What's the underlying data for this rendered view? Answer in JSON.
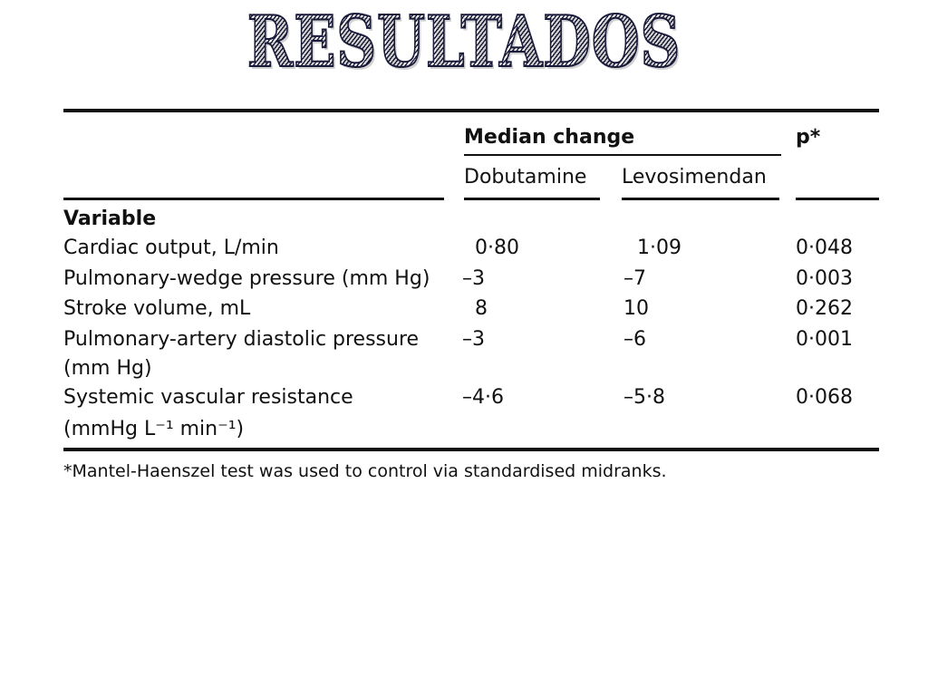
{
  "title": "RESULTADOS",
  "table": {
    "group_header": "Median change",
    "p_header": "p*",
    "col_dobutamine": "Dobutamine",
    "col_levosimendan": "Levosimendan",
    "variable_header": "Variable",
    "rows": [
      {
        "label": "Cardiac output, L/min",
        "dobutamine": "0·80",
        "levosimendan": "1·09",
        "p": "0·048"
      },
      {
        "label": "Pulmonary-wedge pressure (mm Hg)",
        "dobutamine": "–3",
        "levosimendan": "–7",
        "p": "0·003"
      },
      {
        "label": "Stroke volume, mL",
        "dobutamine": "8",
        "levosimendan": "10",
        "p": "0·262"
      },
      {
        "label": "Pulmonary-artery diastolic pressure",
        "label_line2": "(mm Hg)",
        "dobutamine": "–3",
        "levosimendan": "–6",
        "p": "0·001"
      },
      {
        "label": "Systemic vascular resistance",
        "label_line2": "(mmHg L⁻¹ min⁻¹)",
        "dobutamine": "–4·6",
        "levosimendan": "–5·8",
        "p": "0·068"
      }
    ],
    "footnote": "*Mantel-Haenszel test was used to control via standardised midranks."
  }
}
